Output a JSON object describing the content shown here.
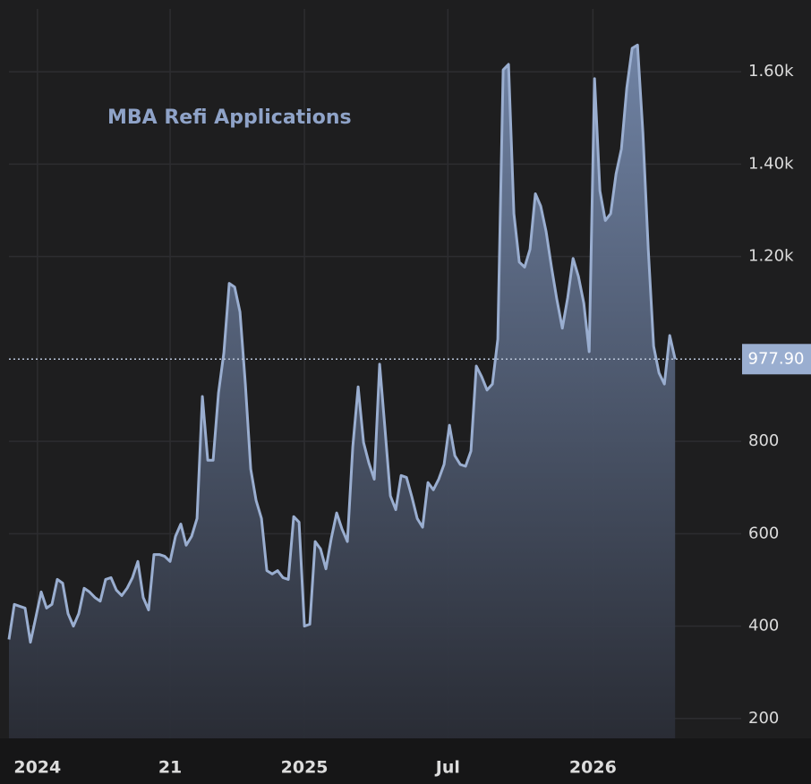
{
  "chart_data": {
    "type": "area",
    "title": "MBA Refi Applications",
    "x": [
      0,
      1,
      2,
      3,
      4,
      5,
      6,
      7,
      8,
      9,
      10,
      11,
      12,
      13,
      14,
      15,
      16,
      17,
      18,
      19,
      20,
      21,
      22,
      23,
      24,
      25,
      26,
      27,
      28,
      29,
      30,
      31,
      32,
      33,
      34,
      35,
      36,
      37,
      38,
      39,
      40,
      41,
      42,
      43,
      44,
      45,
      46,
      47,
      48,
      49,
      50,
      51,
      52,
      53,
      54,
      55,
      56,
      57,
      58,
      59,
      60,
      61,
      62,
      63,
      64,
      65,
      66,
      67,
      68,
      69,
      70,
      71,
      72,
      73,
      74,
      75,
      76,
      77,
      78,
      79,
      80,
      81,
      82,
      83,
      84,
      85,
      86,
      87,
      88,
      89,
      90,
      91,
      92,
      93,
      94,
      95,
      96,
      97,
      98,
      99,
      100,
      101,
      102,
      103,
      104,
      105,
      106,
      107,
      108,
      109,
      110,
      111,
      112,
      113,
      114,
      115,
      116,
      117,
      118,
      119,
      120,
      121,
      122,
      123,
      124
    ],
    "series": [
      {
        "name": "MBA Refi Applications",
        "color": "#9aaed0",
        "values": [
          371,
          447,
          443,
          439,
          365,
          419,
          474,
          439,
          447,
          501,
          493,
          427,
          400,
          427,
          482,
          474,
          462,
          454,
          501,
          505,
          478,
          466,
          482,
          505,
          540,
          462,
          435,
          555,
          555,
          551,
          540,
          594,
          621,
          575,
          594,
          633,
          897,
          759,
          759,
          905,
          992,
          1142,
          1134,
          1080,
          924,
          740,
          672,
          633,
          520,
          513,
          520,
          505,
          501,
          637,
          625,
          400,
          404,
          583,
          567,
          524,
          590,
          645,
          610,
          583,
          788,
          918,
          798,
          753,
          718,
          967,
          827,
          682,
          652,
          726,
          722,
          680,
          633,
          614,
          711,
          695,
          718,
          750,
          835,
          769,
          750,
          746,
          779,
          963,
          940,
          911,
          924,
          1021,
          1604,
          1616,
          1293,
          1188,
          1177,
          1216,
          1336,
          1309,
          1254,
          1177,
          1107,
          1045,
          1111,
          1196,
          1157,
          1099,
          994,
          1585,
          1342,
          1278,
          1293,
          1379,
          1433,
          1565,
          1651,
          1658,
          1468,
          1216,
          1006,
          948,
          924,
          1029,
          977.9
        ]
      }
    ],
    "xlim": [
      0,
      136.3
    ],
    "xticks": [
      {
        "value": 5.3,
        "label": "2024"
      },
      {
        "value": 30,
        "label": "21"
      },
      {
        "value": 55,
        "label": "2025"
      },
      {
        "value": 81.7,
        "label": "Jul"
      },
      {
        "value": 108.7,
        "label": "2026"
      }
    ],
    "ylim": [
      157,
      1736
    ],
    "yticks": [
      200,
      400,
      600,
      800,
      {
        "value": 1200,
        "label": "1.20k"
      },
      {
        "value": 1400,
        "label": "1.40k"
      },
      {
        "value": 1600,
        "label": "1.60k"
      }
    ],
    "grid": true,
    "price_line": {
      "value": 977.9,
      "label": "977.90"
    }
  }
}
